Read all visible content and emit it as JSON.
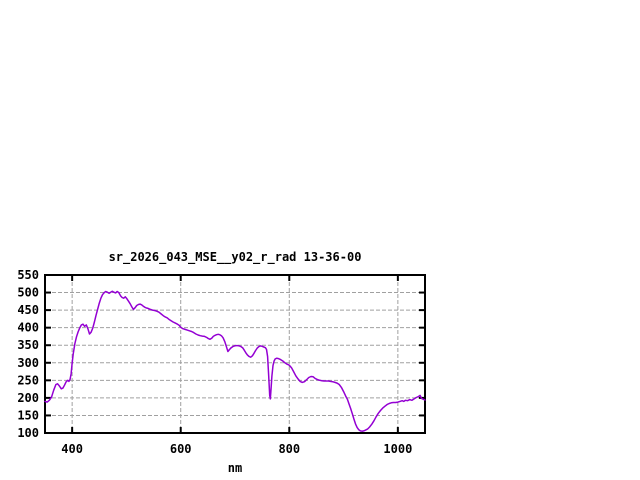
{
  "page": {
    "background": "#ffffff"
  },
  "chart_data": {
    "type": "line",
    "title": "sr_2026_043_MSE__y02_r_rad 13-36-00",
    "xlabel": "nm",
    "ylabel": "",
    "xlim": [
      350,
      1050
    ],
    "ylim": [
      100,
      550
    ],
    "x_ticks": [
      400,
      600,
      800,
      1000
    ],
    "y_ticks": [
      100,
      150,
      200,
      250,
      300,
      350,
      400,
      450,
      500,
      550
    ],
    "grid": true,
    "legend": "none",
    "colors": {
      "line": "#9400d3",
      "grid": "#a0a0a0",
      "border": "#000000",
      "text": "#000000",
      "background": "#ffffff"
    },
    "series": [
      {
        "name": "sr_2026_043_MSE__y02_r_rad 13-36-00",
        "points": [
          [
            350,
            190
          ],
          [
            354,
            188
          ],
          [
            358,
            193
          ],
          [
            362,
            202
          ],
          [
            366,
            222
          ],
          [
            370,
            238
          ],
          [
            373,
            240
          ],
          [
            376,
            235
          ],
          [
            380,
            226
          ],
          [
            383,
            228
          ],
          [
            386,
            236
          ],
          [
            389,
            246
          ],
          [
            392,
            250
          ],
          [
            394,
            247
          ],
          [
            396,
            252
          ],
          [
            398,
            268
          ],
          [
            400,
            298
          ],
          [
            402,
            325
          ],
          [
            405,
            355
          ],
          [
            408,
            374
          ],
          [
            411,
            388
          ],
          [
            414,
            399
          ],
          [
            417,
            408
          ],
          [
            420,
            410
          ],
          [
            423,
            404
          ],
          [
            426,
            408
          ],
          [
            429,
            397
          ],
          [
            432,
            382
          ],
          [
            435,
            387
          ],
          [
            438,
            399
          ],
          [
            441,
            416
          ],
          [
            444,
            435
          ],
          [
            447,
            453
          ],
          [
            450,
            470
          ],
          [
            453,
            484
          ],
          [
            456,
            494
          ],
          [
            459,
            500
          ],
          [
            462,
            503
          ],
          [
            465,
            501
          ],
          [
            468,
            498
          ],
          [
            471,
            501
          ],
          [
            474,
            504
          ],
          [
            477,
            501
          ],
          [
            480,
            499
          ],
          [
            483,
            503
          ],
          [
            486,
            500
          ],
          [
            489,
            491
          ],
          [
            492,
            486
          ],
          [
            495,
            484
          ],
          [
            498,
            488
          ],
          [
            501,
            482
          ],
          [
            504,
            475
          ],
          [
            507,
            468
          ],
          [
            510,
            459
          ],
          [
            513,
            452
          ],
          [
            516,
            457
          ],
          [
            519,
            463
          ],
          [
            522,
            466
          ],
          [
            525,
            467
          ],
          [
            528,
            465
          ],
          [
            531,
            461
          ],
          [
            534,
            458
          ],
          [
            537,
            456
          ],
          [
            540,
            455
          ],
          [
            544,
            452
          ],
          [
            548,
            450
          ],
          [
            552,
            449
          ],
          [
            556,
            447
          ],
          [
            560,
            444
          ],
          [
            564,
            439
          ],
          [
            568,
            434
          ],
          [
            572,
            430
          ],
          [
            575,
            428
          ],
          [
            578,
            424
          ],
          [
            582,
            420
          ],
          [
            586,
            416
          ],
          [
            590,
            413
          ],
          [
            594,
            410
          ],
          [
            597,
            407
          ],
          [
            600,
            401
          ],
          [
            604,
            397
          ],
          [
            608,
            395
          ],
          [
            612,
            393
          ],
          [
            616,
            391
          ],
          [
            620,
            389
          ],
          [
            624,
            386
          ],
          [
            628,
            382
          ],
          [
            632,
            379
          ],
          [
            636,
            377
          ],
          [
            640,
            376
          ],
          [
            644,
            375
          ],
          [
            648,
            372
          ],
          [
            651,
            369
          ],
          [
            654,
            367
          ],
          [
            657,
            370
          ],
          [
            660,
            375
          ],
          [
            663,
            378
          ],
          [
            666,
            380
          ],
          [
            669,
            381
          ],
          [
            672,
            380
          ],
          [
            675,
            377
          ],
          [
            678,
            371
          ],
          [
            681,
            361
          ],
          [
            684,
            347
          ],
          [
            687,
            332
          ],
          [
            690,
            338
          ],
          [
            693,
            343
          ],
          [
            696,
            346
          ],
          [
            699,
            348
          ],
          [
            702,
            349
          ],
          [
            705,
            349
          ],
          [
            708,
            348
          ],
          [
            711,
            346
          ],
          [
            714,
            343
          ],
          [
            717,
            336
          ],
          [
            720,
            328
          ],
          [
            723,
            322
          ],
          [
            726,
            318
          ],
          [
            729,
            316
          ],
          [
            732,
            320
          ],
          [
            735,
            327
          ],
          [
            738,
            335
          ],
          [
            741,
            342
          ],
          [
            744,
            346
          ],
          [
            747,
            348
          ],
          [
            750,
            347
          ],
          [
            753,
            345
          ],
          [
            756,
            343
          ],
          [
            758,
            338
          ],
          [
            760,
            318
          ],
          [
            762,
            262
          ],
          [
            764,
            207
          ],
          [
            765,
            197
          ],
          [
            766,
            215
          ],
          [
            768,
            262
          ],
          [
            770,
            292
          ],
          [
            772,
            305
          ],
          [
            774,
            311
          ],
          [
            777,
            313
          ],
          [
            780,
            312
          ],
          [
            784,
            309
          ],
          [
            788,
            305
          ],
          [
            792,
            300
          ],
          [
            796,
            296
          ],
          [
            800,
            293
          ],
          [
            804,
            286
          ],
          [
            808,
            275
          ],
          [
            812,
            263
          ],
          [
            816,
            254
          ],
          [
            820,
            247
          ],
          [
            824,
            244
          ],
          [
            828,
            246
          ],
          [
            832,
            252
          ],
          [
            836,
            258
          ],
          [
            840,
            261
          ],
          [
            844,
            260
          ],
          [
            848,
            255
          ],
          [
            852,
            252
          ],
          [
            856,
            250
          ],
          [
            860,
            249
          ],
          [
            864,
            248
          ],
          [
            868,
            248
          ],
          [
            872,
            248
          ],
          [
            876,
            247
          ],
          [
            880,
            246
          ],
          [
            884,
            244
          ],
          [
            888,
            242
          ],
          [
            892,
            238
          ],
          [
            896,
            230
          ],
          [
            900,
            218
          ],
          [
            904,
            205
          ],
          [
            907,
            196
          ],
          [
            910,
            183
          ],
          [
            913,
            170
          ],
          [
            916,
            155
          ],
          [
            919,
            140
          ],
          [
            922,
            126
          ],
          [
            925,
            116
          ],
          [
            928,
            109
          ],
          [
            931,
            106
          ],
          [
            934,
            105
          ],
          [
            937,
            106
          ],
          [
            940,
            108
          ],
          [
            944,
            111
          ],
          [
            948,
            117
          ],
          [
            952,
            125
          ],
          [
            956,
            135
          ],
          [
            960,
            146
          ],
          [
            964,
            156
          ],
          [
            968,
            164
          ],
          [
            972,
            171
          ],
          [
            976,
            176
          ],
          [
            980,
            181
          ],
          [
            984,
            184
          ],
          [
            988,
            186
          ],
          [
            992,
            187
          ],
          [
            996,
            187
          ],
          [
            1000,
            188
          ],
          [
            1004,
            190
          ],
          [
            1008,
            192
          ],
          [
            1011,
            190
          ],
          [
            1014,
            193
          ],
          [
            1018,
            192
          ],
          [
            1022,
            195
          ],
          [
            1026,
            193
          ],
          [
            1030,
            197
          ],
          [
            1034,
            201
          ],
          [
            1038,
            204
          ],
          [
            1041,
            207
          ],
          [
            1044,
            198
          ],
          [
            1047,
            196
          ],
          [
            1050,
            194
          ]
        ]
      }
    ]
  }
}
